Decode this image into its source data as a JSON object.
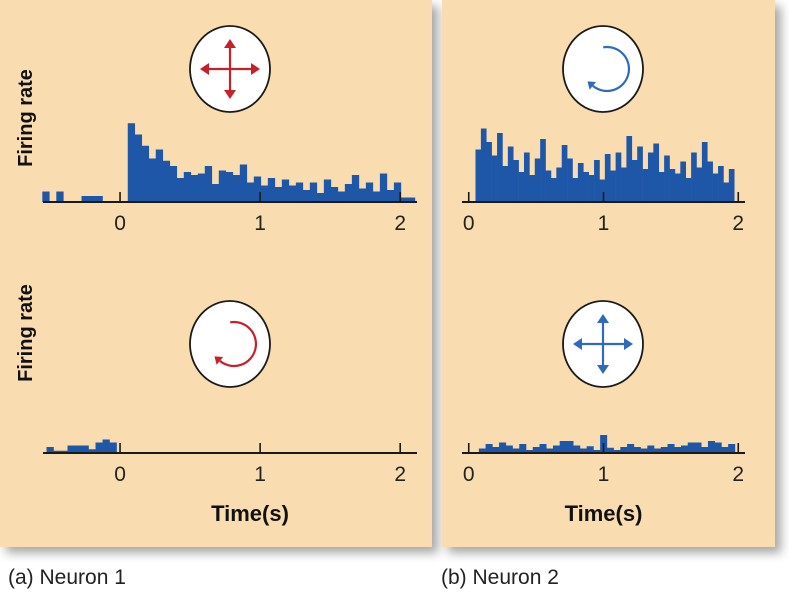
{
  "colors": {
    "panel_bg": "#f9ddb1",
    "bar_blue": "#1f57a8",
    "neuron1_icon": "#c8202a",
    "neuron2_icon": "#2f6bbd",
    "axis": "#1a1a1a"
  },
  "captions": {
    "a": "(a) Neuron 1",
    "b": "(b) Neuron 2"
  },
  "chart_data": [
    {
      "id": "a-top",
      "type": "bar",
      "panel": "a",
      "ylabel": "Firing rate",
      "xlabel": "",
      "stimulus_icon": "four-direction-arrows",
      "icon_color": "#c8202a",
      "xlim": [
        -0.55,
        2.12
      ],
      "ylim": [
        0,
        12
      ],
      "xticks": [
        0,
        1,
        2
      ],
      "bin_width": 0.05,
      "bins": [
        {
          "x": -0.53,
          "v": 1.4
        },
        {
          "x": -0.43,
          "v": 1.4
        },
        {
          "x": -0.25,
          "v": 0.8
        },
        {
          "x": -0.2,
          "v": 0.8
        },
        {
          "x": -0.15,
          "v": 0.8
        },
        {
          "x": 0.08,
          "v": 10.5
        },
        {
          "x": 0.13,
          "v": 9.0
        },
        {
          "x": 0.18,
          "v": 7.5
        },
        {
          "x": 0.23,
          "v": 5.8
        },
        {
          "x": 0.28,
          "v": 7.0
        },
        {
          "x": 0.33,
          "v": 5.5
        },
        {
          "x": 0.38,
          "v": 4.8
        },
        {
          "x": 0.43,
          "v": 3.2
        },
        {
          "x": 0.48,
          "v": 4.0
        },
        {
          "x": 0.53,
          "v": 3.6
        },
        {
          "x": 0.58,
          "v": 3.8
        },
        {
          "x": 0.63,
          "v": 4.8
        },
        {
          "x": 0.68,
          "v": 2.4
        },
        {
          "x": 0.73,
          "v": 4.2
        },
        {
          "x": 0.78,
          "v": 4.0
        },
        {
          "x": 0.83,
          "v": 3.6
        },
        {
          "x": 0.88,
          "v": 5.0
        },
        {
          "x": 0.93,
          "v": 2.6
        },
        {
          "x": 0.98,
          "v": 3.4
        },
        {
          "x": 1.03,
          "v": 2.2
        },
        {
          "x": 1.08,
          "v": 3.2
        },
        {
          "x": 1.13,
          "v": 2.0
        },
        {
          "x": 1.18,
          "v": 3.0
        },
        {
          "x": 1.23,
          "v": 2.2
        },
        {
          "x": 1.28,
          "v": 2.6
        },
        {
          "x": 1.33,
          "v": 1.6
        },
        {
          "x": 1.38,
          "v": 2.6
        },
        {
          "x": 1.43,
          "v": 1.2
        },
        {
          "x": 1.48,
          "v": 3.0
        },
        {
          "x": 1.53,
          "v": 2.0
        },
        {
          "x": 1.58,
          "v": 1.4
        },
        {
          "x": 1.63,
          "v": 2.4
        },
        {
          "x": 1.68,
          "v": 3.6
        },
        {
          "x": 1.73,
          "v": 1.8
        },
        {
          "x": 1.78,
          "v": 2.6
        },
        {
          "x": 1.83,
          "v": 1.4
        },
        {
          "x": 1.88,
          "v": 3.8
        },
        {
          "x": 1.93,
          "v": 1.6
        },
        {
          "x": 1.98,
          "v": 2.6
        },
        {
          "x": 2.03,
          "v": 0.6
        },
        {
          "x": 2.08,
          "v": 0.6
        }
      ]
    },
    {
      "id": "a-bottom",
      "type": "bar",
      "panel": "a",
      "ylabel": "Firing rate",
      "xlabel": "Time(s)",
      "stimulus_icon": "clockwise-arrow",
      "icon_color": "#c8202a",
      "xlim": [
        -0.55,
        2.12
      ],
      "ylim": [
        0,
        12
      ],
      "xticks": [
        0,
        1,
        2
      ],
      "bin_width": 0.05,
      "bins": [
        {
          "x": -0.5,
          "v": 0.8
        },
        {
          "x": -0.45,
          "v": 0.3
        },
        {
          "x": -0.4,
          "v": 0.3
        },
        {
          "x": -0.35,
          "v": 1.0
        },
        {
          "x": -0.3,
          "v": 1.0
        },
        {
          "x": -0.25,
          "v": 1.0
        },
        {
          "x": -0.2,
          "v": 0.5
        },
        {
          "x": -0.15,
          "v": 1.4
        },
        {
          "x": -0.1,
          "v": 1.8
        },
        {
          "x": -0.05,
          "v": 1.4
        }
      ]
    },
    {
      "id": "b-top",
      "type": "bar",
      "panel": "b",
      "ylabel": "",
      "xlabel": "",
      "stimulus_icon": "clockwise-arrow",
      "icon_color": "#2f6bbd",
      "xlim": [
        -0.05,
        2.05
      ],
      "ylim": [
        0,
        12
      ],
      "xticks": [
        0,
        1,
        2
      ],
      "bin_width": 0.04,
      "bins": [
        {
          "x": 0.07,
          "v": 7.0
        },
        {
          "x": 0.11,
          "v": 9.8
        },
        {
          "x": 0.15,
          "v": 8.0
        },
        {
          "x": 0.19,
          "v": 6.2
        },
        {
          "x": 0.23,
          "v": 9.2
        },
        {
          "x": 0.27,
          "v": 4.8
        },
        {
          "x": 0.31,
          "v": 7.4
        },
        {
          "x": 0.35,
          "v": 5.6
        },
        {
          "x": 0.39,
          "v": 4.0
        },
        {
          "x": 0.43,
          "v": 6.6
        },
        {
          "x": 0.47,
          "v": 3.6
        },
        {
          "x": 0.51,
          "v": 5.8
        },
        {
          "x": 0.55,
          "v": 8.4
        },
        {
          "x": 0.59,
          "v": 4.2
        },
        {
          "x": 0.63,
          "v": 3.2
        },
        {
          "x": 0.67,
          "v": 4.6
        },
        {
          "x": 0.71,
          "v": 7.6
        },
        {
          "x": 0.75,
          "v": 5.8
        },
        {
          "x": 0.79,
          "v": 3.2
        },
        {
          "x": 0.83,
          "v": 5.2
        },
        {
          "x": 0.87,
          "v": 4.0
        },
        {
          "x": 0.91,
          "v": 3.6
        },
        {
          "x": 0.95,
          "v": 5.6
        },
        {
          "x": 0.99,
          "v": 3.0
        },
        {
          "x": 1.03,
          "v": 6.4
        },
        {
          "x": 1.07,
          "v": 4.2
        },
        {
          "x": 1.11,
          "v": 6.6
        },
        {
          "x": 1.15,
          "v": 4.6
        },
        {
          "x": 1.19,
          "v": 8.8
        },
        {
          "x": 1.23,
          "v": 5.6
        },
        {
          "x": 1.27,
          "v": 7.4
        },
        {
          "x": 1.31,
          "v": 4.4
        },
        {
          "x": 1.35,
          "v": 6.6
        },
        {
          "x": 1.39,
          "v": 7.8
        },
        {
          "x": 1.43,
          "v": 4.0
        },
        {
          "x": 1.47,
          "v": 6.2
        },
        {
          "x": 1.51,
          "v": 4.4
        },
        {
          "x": 1.55,
          "v": 3.8
        },
        {
          "x": 1.59,
          "v": 5.4
        },
        {
          "x": 1.63,
          "v": 3.2
        },
        {
          "x": 1.67,
          "v": 6.6
        },
        {
          "x": 1.71,
          "v": 4.6
        },
        {
          "x": 1.75,
          "v": 8.0
        },
        {
          "x": 1.79,
          "v": 5.4
        },
        {
          "x": 1.83,
          "v": 3.8
        },
        {
          "x": 1.87,
          "v": 4.8
        },
        {
          "x": 1.91,
          "v": 2.6
        },
        {
          "x": 1.95,
          "v": 4.4
        }
      ]
    },
    {
      "id": "b-bottom",
      "type": "bar",
      "panel": "b",
      "ylabel": "",
      "xlabel": "Time(s)",
      "stimulus_icon": "four-direction-arrows",
      "icon_color": "#2f6bbd",
      "xlim": [
        -0.05,
        2.05
      ],
      "ylim": [
        0,
        12
      ],
      "xticks": [
        0,
        1,
        2
      ],
      "bin_width": 0.05,
      "bins": [
        {
          "x": 0.1,
          "v": 0.6
        },
        {
          "x": 0.15,
          "v": 1.2
        },
        {
          "x": 0.2,
          "v": 0.8
        },
        {
          "x": 0.25,
          "v": 1.4
        },
        {
          "x": 0.3,
          "v": 1.0
        },
        {
          "x": 0.35,
          "v": 0.6
        },
        {
          "x": 0.4,
          "v": 1.2
        },
        {
          "x": 0.45,
          "v": 0.4
        },
        {
          "x": 0.5,
          "v": 0.8
        },
        {
          "x": 0.55,
          "v": 1.2
        },
        {
          "x": 0.6,
          "v": 0.6
        },
        {
          "x": 0.65,
          "v": 1.0
        },
        {
          "x": 0.7,
          "v": 1.6
        },
        {
          "x": 0.75,
          "v": 1.6
        },
        {
          "x": 0.8,
          "v": 1.0
        },
        {
          "x": 0.85,
          "v": 0.6
        },
        {
          "x": 0.9,
          "v": 0.9
        },
        {
          "x": 0.95,
          "v": 0.4
        },
        {
          "x": 1.0,
          "v": 2.4
        },
        {
          "x": 1.05,
          "v": 0.7
        },
        {
          "x": 1.1,
          "v": 0.4
        },
        {
          "x": 1.15,
          "v": 0.8
        },
        {
          "x": 1.2,
          "v": 1.2
        },
        {
          "x": 1.25,
          "v": 0.8
        },
        {
          "x": 1.3,
          "v": 0.6
        },
        {
          "x": 1.35,
          "v": 1.0
        },
        {
          "x": 1.4,
          "v": 0.6
        },
        {
          "x": 1.45,
          "v": 0.8
        },
        {
          "x": 1.5,
          "v": 1.2
        },
        {
          "x": 1.55,
          "v": 0.8
        },
        {
          "x": 1.6,
          "v": 1.0
        },
        {
          "x": 1.65,
          "v": 1.4
        },
        {
          "x": 1.7,
          "v": 1.4
        },
        {
          "x": 1.75,
          "v": 0.8
        },
        {
          "x": 1.8,
          "v": 1.6
        },
        {
          "x": 1.85,
          "v": 1.4
        },
        {
          "x": 1.9,
          "v": 0.8
        },
        {
          "x": 1.95,
          "v": 1.2
        }
      ]
    }
  ]
}
